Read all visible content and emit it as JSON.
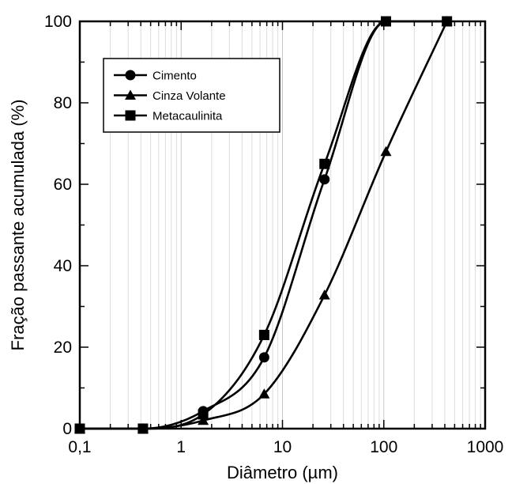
{
  "chart_data": {
    "type": "line",
    "title": "",
    "xlabel": "Diâmetro (µm)",
    "ylabel": "Fração passante acumulada (%)",
    "x_scale": "log",
    "xlim": [
      0.1,
      1000
    ],
    "ylim": [
      0,
      100
    ],
    "x_ticks": [
      {
        "value": 0.1,
        "label": "0,1"
      },
      {
        "value": 1,
        "label": "1"
      },
      {
        "value": 10,
        "label": "10"
      },
      {
        "value": 100,
        "label": "100"
      },
      {
        "value": 1000,
        "label": "1000"
      }
    ],
    "y_ticks": [
      {
        "value": 0,
        "label": "0"
      },
      {
        "value": 20,
        "label": "20"
      },
      {
        "value": 40,
        "label": "40"
      },
      {
        "value": 60,
        "label": "60"
      },
      {
        "value": 80,
        "label": "80"
      },
      {
        "value": 100,
        "label": "100"
      }
    ],
    "grid": "vertical-log-minor",
    "legend_position": "top-left",
    "series": [
      {
        "name": "Cimento",
        "marker": "circle",
        "color": "#000000",
        "points": [
          [
            0.1,
            0
          ],
          [
            0.42,
            0
          ],
          [
            1.65,
            4.3
          ],
          [
            6.6,
            17.5
          ],
          [
            26,
            61.2
          ],
          [
            105,
            100
          ],
          [
            420,
            100
          ]
        ]
      },
      {
        "name": "Cinza Volante",
        "marker": "triangle",
        "color": "#000000",
        "points": [
          [
            0.1,
            0
          ],
          [
            0.42,
            0
          ],
          [
            1.65,
            2
          ],
          [
            6.6,
            8.5
          ],
          [
            26,
            32.8
          ],
          [
            105,
            68
          ],
          [
            420,
            100
          ]
        ]
      },
      {
        "name": "Metacaulinita",
        "marker": "square",
        "color": "#000000",
        "points": [
          [
            0.1,
            0
          ],
          [
            0.42,
            0
          ],
          [
            1.65,
            3.5
          ],
          [
            6.6,
            23
          ],
          [
            26,
            65
          ],
          [
            105,
            100
          ],
          [
            420,
            100
          ]
        ]
      }
    ]
  }
}
